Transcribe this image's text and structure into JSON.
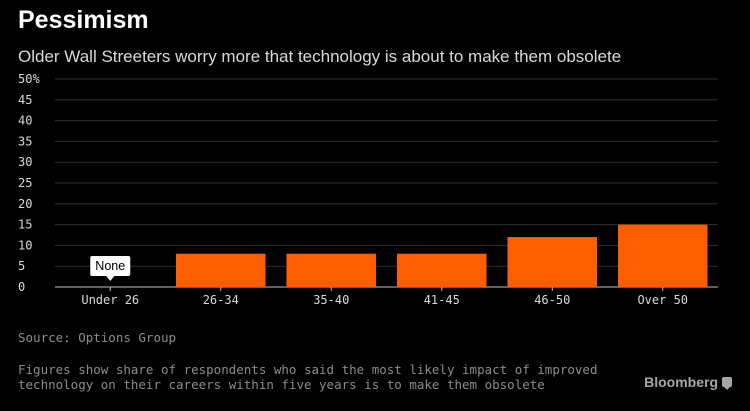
{
  "title": "Pessimism",
  "subtitle": "Older Wall Streeters worry more that technology is about to make them obsolete",
  "source": "Source: Options Group",
  "note": "Figures show share of respondents who said the most likely impact of improved technology on their careers within five years is to make them obsolete",
  "brand": "Bloomberg",
  "chart_data": {
    "type": "bar",
    "categories": [
      "Under 26",
      "26-34",
      "35-40",
      "41-45",
      "46-50",
      "Over 50"
    ],
    "values": [
      0,
      8,
      8,
      8,
      12,
      15
    ],
    "annotations": [
      {
        "category": "Under 26",
        "text": "None"
      }
    ],
    "ylim": [
      0,
      50
    ],
    "yticks": [
      0,
      5,
      10,
      15,
      20,
      25,
      30,
      35,
      40,
      45,
      50
    ],
    "ytick_labels": [
      "0",
      "5",
      "10",
      "15",
      "20",
      "25",
      "30",
      "35",
      "40",
      "45",
      "50%"
    ],
    "grid": true,
    "colors": {
      "bar": "#ff5e00",
      "grid": "#2f2f2f",
      "axis": "#bfbfbf",
      "label": "#d9d9d9",
      "annotation_bg": "#ffffff",
      "annotation_text": "#000000"
    }
  }
}
